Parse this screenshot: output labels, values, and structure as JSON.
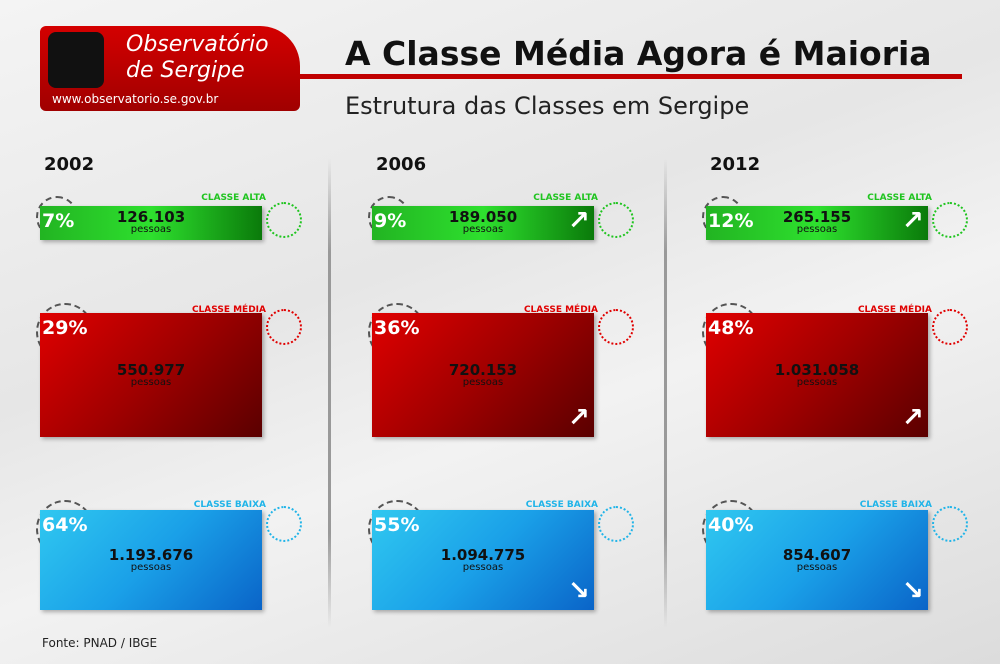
{
  "header": {
    "brand": [
      "Observatório",
      "de Sergipe"
    ],
    "url": "www.observatorio.se.gov.br",
    "title": "A Classe Média Agora é Maioria",
    "subtitle": "Estrutura das Classes em Sergipe"
  },
  "columns": [
    {
      "year": "2002",
      "classes": [
        {
          "label": "CLASSE ALTA",
          "percent": "7%",
          "count": "126.103",
          "unit": "pessoas"
        },
        {
          "label": "CLASSE MÉDIA",
          "percent": "29%",
          "count": "550.977",
          "unit": "pessoas"
        },
        {
          "label": "CLASSE BAIXA",
          "percent": "64%",
          "count": "1.193.676",
          "unit": "pessoas"
        }
      ]
    },
    {
      "year": "2006",
      "classes": [
        {
          "label": "CLASSE ALTA",
          "percent": "9%",
          "count": "189.050",
          "unit": "pessoas"
        },
        {
          "label": "CLASSE MÉDIA",
          "percent": "36%",
          "count": "720.153",
          "unit": "pessoas"
        },
        {
          "label": "CLASSE BAIXA",
          "percent": "55%",
          "count": "1.094.775",
          "unit": "pessoas"
        }
      ]
    },
    {
      "year": "2012",
      "classes": [
        {
          "label": "CLASSE ALTA",
          "percent": "12%",
          "count": "265.155",
          "unit": "pessoas"
        },
        {
          "label": "CLASSE MÉDIA",
          "percent": "48%",
          "count": "1.031.058",
          "unit": "pessoas"
        },
        {
          "label": "CLASSE BAIXA",
          "percent": "40%",
          "count": "854.607",
          "unit": "pessoas"
        }
      ]
    }
  ],
  "source": "Fonte: PNAD / IBGE"
}
